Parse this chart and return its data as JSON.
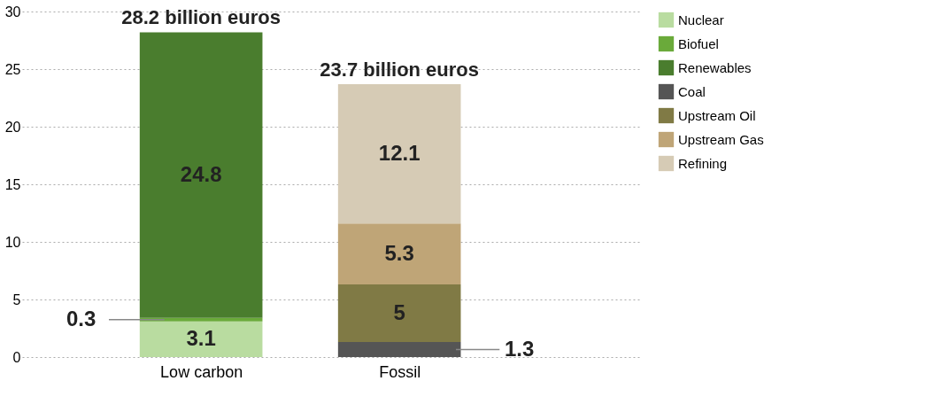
{
  "chart_data": {
    "type": "bar",
    "stacked": true,
    "categories": [
      "Low carbon",
      "Fossil"
    ],
    "series": [
      {
        "name": "Nuclear",
        "color": "#b9dca0",
        "values": [
          3.1,
          null
        ]
      },
      {
        "name": "Biofuel",
        "color": "#6aaa3a",
        "values": [
          0.3,
          null
        ]
      },
      {
        "name": "Renewables",
        "color": "#4a7d2e",
        "values": [
          24.8,
          null
        ]
      },
      {
        "name": "Coal",
        "color": "#555555",
        "values": [
          null,
          1.3
        ]
      },
      {
        "name": "Upstream Oil",
        "color": "#807a45",
        "values": [
          null,
          5
        ]
      },
      {
        "name": "Upstream Gas",
        "color": "#bfa577",
        "values": [
          null,
          5.3
        ]
      },
      {
        "name": "Refining",
        "color": "#d6cbb5",
        "values": [
          null,
          12.1
        ]
      }
    ],
    "ylim": [
      0,
      30
    ],
    "yticks": [
      0,
      5,
      10,
      15,
      20,
      25,
      30
    ],
    "grid": "y",
    "legend": "right",
    "data_labels": true,
    "totals": [
      "28.2 billion euros",
      "23.7 billion euros"
    ]
  }
}
